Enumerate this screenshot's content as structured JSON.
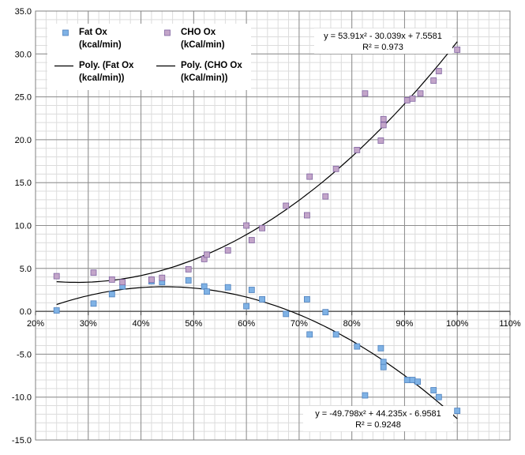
{
  "chart_data": {
    "type": "scatter",
    "x_axis": {
      "min": 0.2,
      "max": 1.1,
      "major": 0.1,
      "minor": 0.02,
      "format": "percent",
      "tick_labels": [
        "20%",
        "30%",
        "40%",
        "50%",
        "60%",
        "70%",
        "80%",
        "90%",
        "100%",
        "110%"
      ]
    },
    "y_axis": {
      "min": -15,
      "max": 35,
      "major": 5,
      "minor": 1,
      "tick_labels": [
        "-15.0",
        "-10.0",
        "-5.0",
        "0.0",
        "5.0",
        "10.0",
        "15.0",
        "20.0",
        "25.0",
        "30.0",
        "35.0"
      ]
    },
    "grid": true,
    "legend": {
      "position": "top-left",
      "entries": [
        {
          "label_line1": "Fat Ox",
          "label_line2": "(kcal/min)",
          "kind": "marker",
          "color": "#7fb2e5"
        },
        {
          "label_line1": "CHO Ox",
          "label_line2": "(kCal/min)",
          "kind": "marker",
          "color": "#c3a5c9"
        },
        {
          "label_line1": "Poly. (Fat Ox",
          "label_line2": "(kcal/min))",
          "kind": "line",
          "color": "#000000"
        },
        {
          "label_line1": "Poly. (CHO Ox",
          "label_line2": "(kCal/min))",
          "kind": "line",
          "color": "#000000"
        }
      ]
    },
    "series": [
      {
        "name": "Fat Ox (kcal/min)",
        "marker_fill": "#7fb2e5",
        "marker_stroke": "#4f81bd",
        "points": [
          [
            0.24,
            0.1
          ],
          [
            0.31,
            0.9
          ],
          [
            0.345,
            2.0
          ],
          [
            0.365,
            2.9
          ],
          [
            0.42,
            3.5
          ],
          [
            0.44,
            3.4
          ],
          [
            0.49,
            3.6
          ],
          [
            0.52,
            2.9
          ],
          [
            0.525,
            2.3
          ],
          [
            0.565,
            2.8
          ],
          [
            0.6,
            0.6
          ],
          [
            0.61,
            2.5
          ],
          [
            0.63,
            1.4
          ],
          [
            0.675,
            -0.3
          ],
          [
            0.715,
            1.4
          ],
          [
            0.72,
            -2.7
          ],
          [
            0.75,
            -0.1
          ],
          [
            0.77,
            -2.7
          ],
          [
            0.81,
            -4.1
          ],
          [
            0.825,
            -9.8
          ],
          [
            0.855,
            -4.3
          ],
          [
            0.86,
            -5.9
          ],
          [
            0.86,
            -6.5
          ],
          [
            0.905,
            -8.0
          ],
          [
            0.915,
            -8.0
          ],
          [
            0.925,
            -8.2
          ],
          [
            0.955,
            -9.2
          ],
          [
            0.965,
            -10.0
          ],
          [
            1.0,
            -11.6
          ]
        ]
      },
      {
        "name": "CHO Ox (kCal/min)",
        "marker_fill": "#c3a5c9",
        "marker_stroke": "#8064a2",
        "points": [
          [
            0.24,
            4.1
          ],
          [
            0.31,
            4.5
          ],
          [
            0.345,
            3.7
          ],
          [
            0.365,
            3.4
          ],
          [
            0.42,
            3.7
          ],
          [
            0.44,
            3.9
          ],
          [
            0.49,
            4.9
          ],
          [
            0.52,
            6.1
          ],
          [
            0.525,
            6.6
          ],
          [
            0.565,
            7.1
          ],
          [
            0.6,
            10.0
          ],
          [
            0.61,
            8.3
          ],
          [
            0.63,
            9.7
          ],
          [
            0.675,
            12.3
          ],
          [
            0.715,
            11.2
          ],
          [
            0.72,
            15.7
          ],
          [
            0.75,
            13.4
          ],
          [
            0.77,
            16.6
          ],
          [
            0.81,
            18.8
          ],
          [
            0.825,
            25.4
          ],
          [
            0.855,
            19.9
          ],
          [
            0.86,
            21.7
          ],
          [
            0.86,
            22.4
          ],
          [
            0.905,
            24.6
          ],
          [
            0.915,
            24.8
          ],
          [
            0.93,
            25.4
          ],
          [
            0.955,
            26.9
          ],
          [
            0.965,
            28.0
          ],
          [
            1.0,
            30.5
          ]
        ]
      }
    ],
    "trendlines": [
      {
        "name": "Poly. (Fat Ox (kcal/min))",
        "a": -49.798,
        "b": 44.235,
        "c": -6.9581,
        "x_range": [
          0.24,
          1.0
        ],
        "equation": "y = -49.798x² + 44.235x - 6.9581",
        "r_squared": "R² = 0.9248"
      },
      {
        "name": "Poly. (CHO Ox (kCal/min))",
        "a": 53.91,
        "b": -30.039,
        "c": 7.5581,
        "x_range": [
          0.24,
          1.0
        ],
        "equation": "y = 53.91x² - 30.039x + 7.5581",
        "r_squared": "R² = 0.973"
      }
    ]
  }
}
